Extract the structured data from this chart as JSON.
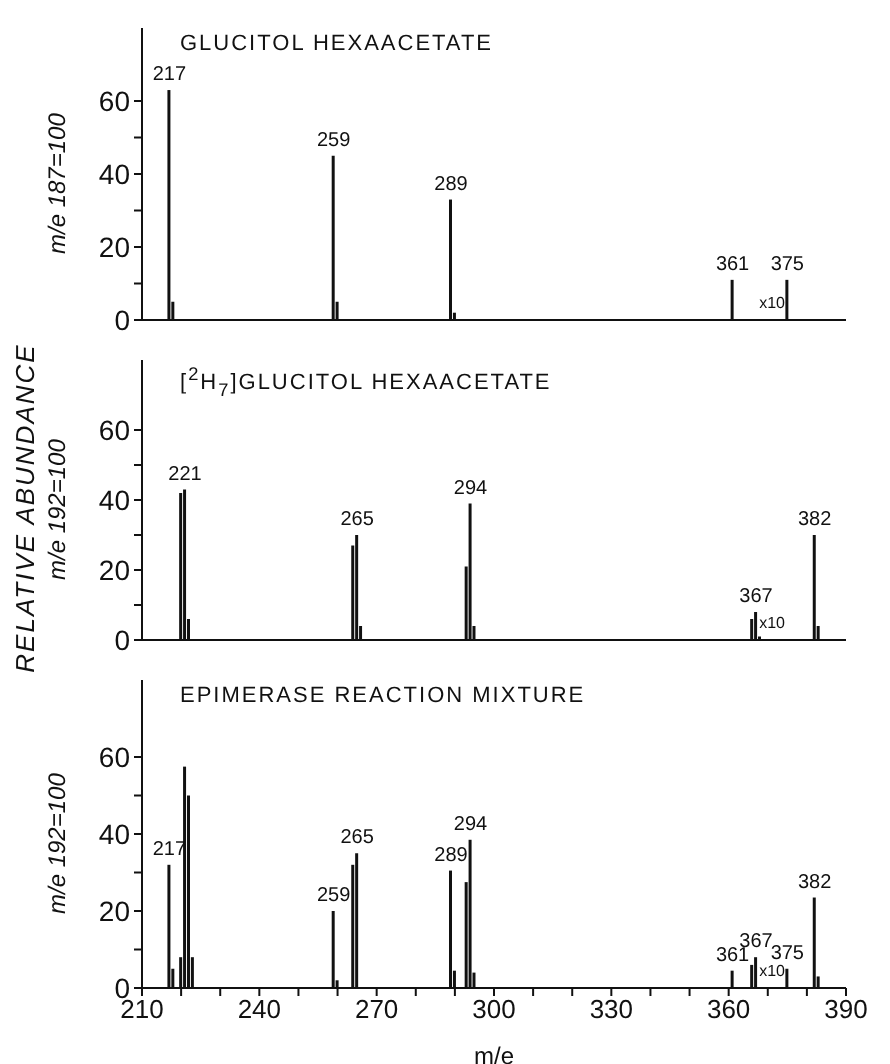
{
  "chart_data": [
    {
      "type": "bar",
      "title": "GLUCITOL HEXAACETATE",
      "ylabel": "m/e 187=100",
      "xlim": [
        210,
        390
      ],
      "ylim": [
        0,
        80
      ],
      "yticks": [
        0,
        {
          "value": 10,
          "label": null
        },
        20,
        {
          "value": 30,
          "label": null
        },
        40,
        {
          "value": 50,
          "label": null
        },
        60
      ],
      "tick_labels": "y",
      "grid": false,
      "legend": false,
      "series": [
        {
          "color": "#111111",
          "x": [
            217,
            218,
            259,
            260,
            289,
            290,
            361,
            375
          ],
          "values": [
            63,
            5,
            45,
            5,
            33,
            2,
            11,
            11
          ]
        }
      ],
      "annotations": [
        {
          "text": "217",
          "x": 217,
          "y": 63
        },
        {
          "text": "259",
          "x": 259,
          "y": 45
        },
        {
          "text": "289",
          "x": 289,
          "y": 33
        },
        {
          "text": "361",
          "x": 361,
          "y": 11
        },
        {
          "text": "375",
          "x": 375,
          "y": 11
        },
        "x10"
      ]
    },
    {
      "type": "bar",
      "title": "[$^{2}$H$_{7}$]GLUCITOL HEXAACETATE",
      "ylabel": "m/e 192=100",
      "xlim": [
        210,
        390
      ],
      "ylim": [
        0,
        80
      ],
      "yticks": [
        0,
        {
          "value": 10,
          "label": null
        },
        20,
        {
          "value": 30,
          "label": null
        },
        40,
        {
          "value": 50,
          "label": null
        },
        60
      ],
      "tick_labels": "y",
      "grid": false,
      "legend": false,
      "series": [
        {
          "color": "#111111",
          "x": [
            220,
            221,
            222,
            264,
            265,
            266,
            293,
            294,
            295,
            366,
            367,
            368,
            382,
            383
          ],
          "values": [
            42,
            43,
            6,
            27,
            30,
            4,
            21,
            39,
            4,
            6,
            8,
            1,
            30,
            4
          ]
        }
      ],
      "annotations": [
        "RELATIVE ABUNDANCE",
        {
          "text": "221",
          "x": 221,
          "y": 43
        },
        {
          "text": "265",
          "x": 265,
          "y": 30
        },
        {
          "text": "294",
          "x": 294,
          "y": 39
        },
        {
          "text": "367",
          "x": 367,
          "y": 8
        },
        {
          "text": "382",
          "x": 382,
          "y": 30
        },
        "x10"
      ]
    },
    {
      "type": "bar",
      "title": "EPIMERASE REACTION MIXTURE",
      "ylabel": "m/e 192=100",
      "xlabel": "m/e",
      "xlim": [
        210,
        390
      ],
      "ylim": [
        0,
        80
      ],
      "xticks": [
        210,
        {
          "value": 220,
          "label": null
        },
        {
          "value": 230,
          "label": null
        },
        240,
        {
          "value": 250,
          "label": null
        },
        {
          "value": 260,
          "label": null
        },
        270,
        {
          "value": 280,
          "label": null
        },
        {
          "value": 290,
          "label": null
        },
        300,
        {
          "value": 310,
          "label": null
        },
        {
          "value": 320,
          "label": null
        },
        330,
        {
          "value": 340,
          "label": null
        },
        {
          "value": 350,
          "label": null
        },
        360,
        {
          "value": 370,
          "label": null
        },
        {
          "value": 380,
          "label": null
        },
        390
      ],
      "yticks": [
        0,
        {
          "value": 10,
          "label": null
        },
        20,
        {
          "value": 30,
          "label": null
        },
        40,
        {
          "value": 50,
          "label": null
        },
        60
      ],
      "grid": false,
      "legend": false,
      "series": [
        {
          "color": "#111111",
          "x": [
            217,
            218,
            220,
            221,
            222,
            223,
            259,
            260,
            264,
            265,
            289,
            290,
            293,
            294,
            295,
            361,
            366,
            367,
            375,
            382,
            383
          ],
          "values": [
            32,
            5,
            8,
            57.5,
            50,
            8,
            20,
            2,
            32,
            35,
            30.5,
            4.5,
            27.5,
            38.5,
            4,
            4.5,
            6,
            8,
            5,
            23.5,
            3
          ]
        }
      ],
      "annotations": [
        {
          "text": "217",
          "x": 217,
          "y": 32
        },
        {
          "text": "259",
          "x": 259,
          "y": 20
        },
        {
          "text": "265",
          "x": 265,
          "y": 35
        },
        {
          "text": "289",
          "x": 289,
          "y": 30.5
        },
        {
          "text": "294",
          "x": 294,
          "y": 38.5
        },
        {
          "text": "361",
          "x": 361,
          "y": 4.5
        },
        {
          "text": "367",
          "x": 367,
          "y": 8
        },
        {
          "text": "375",
          "x": 375,
          "y": 5
        },
        {
          "text": "382",
          "x": 382,
          "y": 23.5
        },
        "x10"
      ]
    }
  ]
}
